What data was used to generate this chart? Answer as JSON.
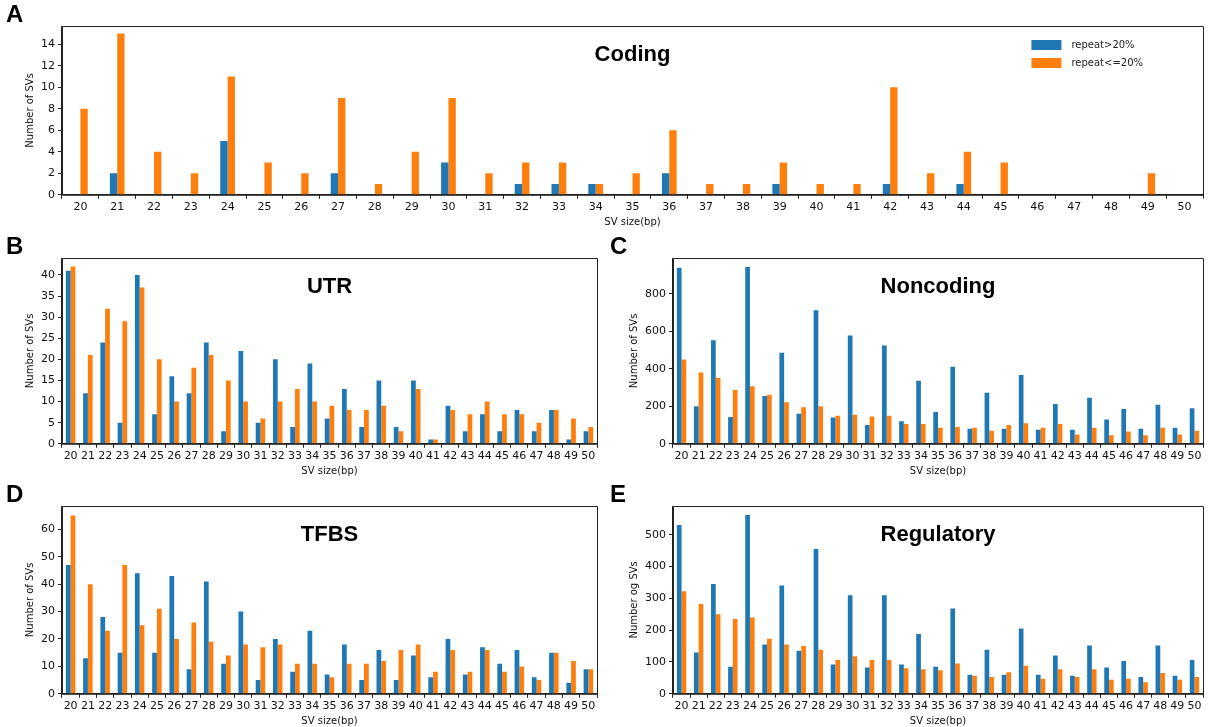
{
  "chart_data": [
    {
      "type": "bar",
      "title": "Coding",
      "xlabel": "SV size(bp)",
      "ylabel": "Number of SVs",
      "annotations": [
        "A"
      ],
      "legend": "top right",
      "categories": [
        "20",
        "21",
        "22",
        "23",
        "24",
        "25",
        "26",
        "27",
        "28",
        "29",
        "30",
        "31",
        "32",
        "33",
        "34",
        "35",
        "36",
        "37",
        "38",
        "39",
        "40",
        "41",
        "42",
        "43",
        "44",
        "45",
        "46",
        "47",
        "48",
        "49",
        "50"
      ],
      "ylim": [
        0,
        15.7
      ],
      "yticks": [
        0,
        2,
        4,
        6,
        8,
        10,
        12,
        14
      ],
      "series": [
        {
          "name": "repeat>20%",
          "color": "#1f77b4",
          "values": [
            0,
            2,
            0,
            0,
            5,
            0,
            0,
            2,
            0,
            0,
            3,
            0,
            1,
            1,
            1,
            0,
            2,
            0,
            0,
            1,
            0,
            0,
            1,
            0,
            1,
            0,
            0,
            0,
            0,
            0,
            0
          ]
        },
        {
          "name": "repeat<=20%",
          "color": "#ff7f0e",
          "values": [
            8,
            15,
            4,
            2,
            11,
            3,
            2,
            9,
            1,
            4,
            9,
            2,
            3,
            3,
            1,
            2,
            6,
            1,
            1,
            3,
            1,
            1,
            10,
            2,
            4,
            3,
            0,
            0,
            0,
            2,
            0
          ]
        }
      ]
    },
    {
      "type": "bar",
      "title": "UTR",
      "xlabel": "SV size(bp)",
      "ylabel": "Number of SVs",
      "annotations": [
        "B"
      ],
      "categories": [
        "20",
        "21",
        "22",
        "23",
        "24",
        "25",
        "26",
        "27",
        "28",
        "29",
        "30",
        "31",
        "32",
        "33",
        "34",
        "35",
        "36",
        "37",
        "38",
        "39",
        "40",
        "41",
        "42",
        "43",
        "44",
        "45",
        "46",
        "47",
        "48",
        "49",
        "50"
      ],
      "ylim": [
        0,
        44
      ],
      "yticks": [
        0,
        5,
        10,
        15,
        20,
        25,
        30,
        35,
        40
      ],
      "series": [
        {
          "color": "#1f77b4",
          "values": [
            41,
            12,
            24,
            5,
            40,
            7,
            16,
            12,
            24,
            3,
            22,
            5,
            20,
            4,
            19,
            6,
            13,
            4,
            15,
            4,
            15,
            1,
            9,
            3,
            7,
            3,
            8,
            3,
            8,
            1,
            3
          ]
        },
        {
          "color": "#ff7f0e",
          "values": [
            42,
            21,
            32,
            29,
            37,
            20,
            10,
            18,
            21,
            15,
            10,
            6,
            10,
            13,
            10,
            9,
            8,
            8,
            9,
            3,
            13,
            1,
            8,
            7,
            10,
            7,
            7,
            5,
            8,
            6,
            4
          ]
        }
      ]
    },
    {
      "type": "bar",
      "title": "Noncoding",
      "xlabel": "SV size(bp)",
      "ylabel": "Number of SVs",
      "annotations": [
        "C"
      ],
      "categories": [
        "20",
        "21",
        "22",
        "23",
        "24",
        "25",
        "26",
        "27",
        "28",
        "29",
        "30",
        "31",
        "32",
        "33",
        "34",
        "35",
        "36",
        "37",
        "38",
        "39",
        "40",
        "41",
        "42",
        "43",
        "44",
        "45",
        "46",
        "47",
        "48",
        "49",
        "50"
      ],
      "ylim": [
        0,
        990
      ],
      "yticks": [
        0,
        200,
        400,
        600,
        800
      ],
      "series": [
        {
          "color": "#1f77b4",
          "values": [
            938,
            200,
            552,
            143,
            942,
            255,
            485,
            160,
            711,
            140,
            577,
            100,
            524,
            120,
            336,
            170,
            410,
            80,
            272,
            80,
            367,
            75,
            212,
            75,
            245,
            130,
            185,
            80,
            208,
            85,
            190
          ]
        },
        {
          "color": "#ff7f0e",
          "values": [
            449,
            380,
            352,
            287,
            307,
            262,
            222,
            195,
            200,
            150,
            155,
            145,
            150,
            105,
            105,
            85,
            90,
            85,
            70,
            100,
            110,
            85,
            105,
            50,
            85,
            45,
            65,
            45,
            85,
            50,
            70
          ]
        }
      ]
    },
    {
      "type": "bar",
      "title": "TFBS",
      "xlabel": "SV size(bp)",
      "ylabel": "Number of SVs",
      "annotations": [
        "D"
      ],
      "categories": [
        "20",
        "21",
        "22",
        "23",
        "24",
        "25",
        "26",
        "27",
        "28",
        "29",
        "30",
        "31",
        "32",
        "33",
        "34",
        "35",
        "36",
        "37",
        "38",
        "39",
        "40",
        "41",
        "42",
        "43",
        "44",
        "45",
        "46",
        "47",
        "48",
        "49",
        "50"
      ],
      "ylim": [
        0,
        68.5
      ],
      "yticks": [
        0,
        10,
        20,
        30,
        40,
        50,
        60
      ],
      "series": [
        {
          "color": "#1f77b4",
          "values": [
            47,
            13,
            28,
            15,
            44,
            15,
            43,
            9,
            41,
            11,
            30,
            5,
            20,
            8,
            23,
            7,
            18,
            5,
            16,
            5,
            14,
            6,
            20,
            7,
            17,
            11,
            16,
            6,
            15,
            4,
            9
          ]
        },
        {
          "color": "#ff7f0e",
          "values": [
            65,
            40,
            23,
            47,
            25,
            31,
            20,
            26,
            19,
            14,
            18,
            17,
            18,
            11,
            11,
            6,
            11,
            11,
            12,
            16,
            18,
            8,
            16,
            8,
            16,
            8,
            10,
            5,
            15,
            12,
            9
          ]
        }
      ]
    },
    {
      "type": "bar",
      "title": "Regulatory",
      "xlabel": "SV size(bp)",
      "ylabel": "Number og SVs",
      "annotations": [
        "E"
      ],
      "categories": [
        "20",
        "21",
        "22",
        "23",
        "24",
        "25",
        "26",
        "27",
        "28",
        "29",
        "30",
        "31",
        "32",
        "33",
        "34",
        "35",
        "36",
        "37",
        "38",
        "39",
        "40",
        "41",
        "42",
        "43",
        "44",
        "45",
        "46",
        "47",
        "48",
        "49",
        "50"
      ],
      "ylim": [
        0,
        590
      ],
      "yticks": [
        0,
        100,
        200,
        300,
        400,
        500
      ],
      "series": [
        {
          "color": "#1f77b4",
          "values": [
            530,
            130,
            345,
            85,
            562,
            155,
            340,
            135,
            455,
            92,
            310,
            83,
            310,
            92,
            188,
            85,
            268,
            60,
            138,
            60,
            205,
            60,
            120,
            57,
            152,
            83,
            103,
            53,
            152,
            57,
            106
          ]
        },
        {
          "color": "#ff7f0e",
          "values": [
            322,
            282,
            250,
            235,
            240,
            173,
            155,
            150,
            138,
            106,
            118,
            106,
            106,
            80,
            77,
            74,
            95,
            57,
            53,
            68,
            88,
            47,
            77,
            53,
            77,
            44,
            47,
            36,
            65,
            44,
            53
          ]
        }
      ]
    }
  ]
}
